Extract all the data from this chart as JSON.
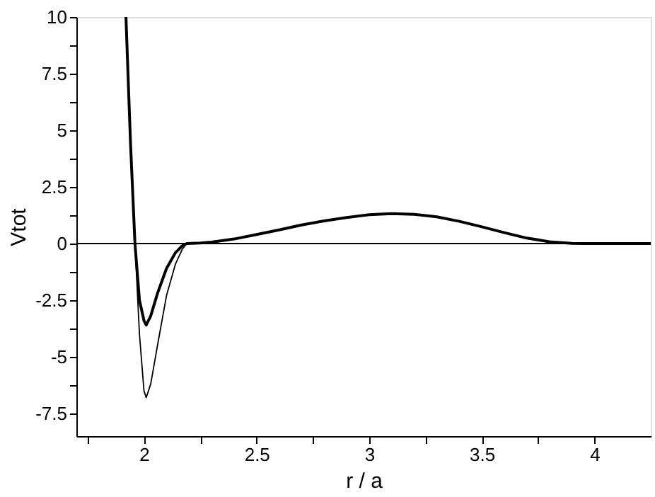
{
  "chart_data": {
    "type": "line",
    "xlabel": "r / a",
    "ylabel": "Vtot",
    "xlim": [
      1.7,
      4.25
    ],
    "ylim": [
      -8.5,
      10
    ],
    "xticks": [
      {
        "value": 1.75,
        "label": null
      },
      2,
      {
        "value": 2.25,
        "label": null
      },
      2.5,
      {
        "value": 2.75,
        "label": null
      },
      3,
      {
        "value": 3.25,
        "label": null
      },
      3.5,
      {
        "value": 3.75,
        "label": null
      },
      4
    ],
    "yticks": [
      -7.5,
      {
        "value": -6.25,
        "label": null
      },
      -5,
      {
        "value": -3.75,
        "label": null
      },
      -2.5,
      {
        "value": -1.25,
        "label": null
      },
      0,
      {
        "value": 1.25,
        "label": null
      },
      2.5,
      {
        "value": 3.75,
        "label": null
      },
      5,
      {
        "value": 6.25,
        "label": null
      },
      7.5,
      {
        "value": 8.75,
        "label": null
      },
      10
    ],
    "grid": false,
    "marker": "none",
    "line_style": "solid",
    "ref_lines": [
      {
        "axis": "y",
        "value": 0,
        "color": "#000000"
      }
    ],
    "series": [
      {
        "color": "#000000",
        "x": [
          1.92,
          1.94,
          1.96,
          1.98,
          2.0,
          2.01,
          2.03,
          2.06,
          2.1,
          2.14,
          2.17,
          2.19,
          2.25,
          2.3,
          2.4,
          2.5,
          2.6,
          2.7,
          2.8,
          2.9,
          3.0,
          3.1,
          3.2,
          3.3,
          3.4,
          3.5,
          3.6,
          3.7,
          3.8,
          3.9,
          3.95,
          4.25
        ],
        "values": [
          10,
          4.5,
          0,
          -2.5,
          -3.4,
          -3.6,
          -3.2,
          -2.2,
          -1.1,
          -0.4,
          -0.1,
          0,
          0.02,
          0.06,
          0.2,
          0.4,
          0.6,
          0.82,
          1.0,
          1.15,
          1.27,
          1.32,
          1.29,
          1.18,
          0.98,
          0.74,
          0.48,
          0.24,
          0.08,
          0.01,
          0,
          0
        ]
      },
      {
        "color": "#000000",
        "x": [
          1.96,
          1.98,
          2.0,
          2.01,
          2.03,
          2.06,
          2.1,
          2.14,
          2.17,
          2.19
        ],
        "values": [
          0,
          -4.0,
          -6.5,
          -6.8,
          -6.2,
          -4.5,
          -2.3,
          -0.9,
          -0.25,
          0
        ]
      }
    ]
  }
}
